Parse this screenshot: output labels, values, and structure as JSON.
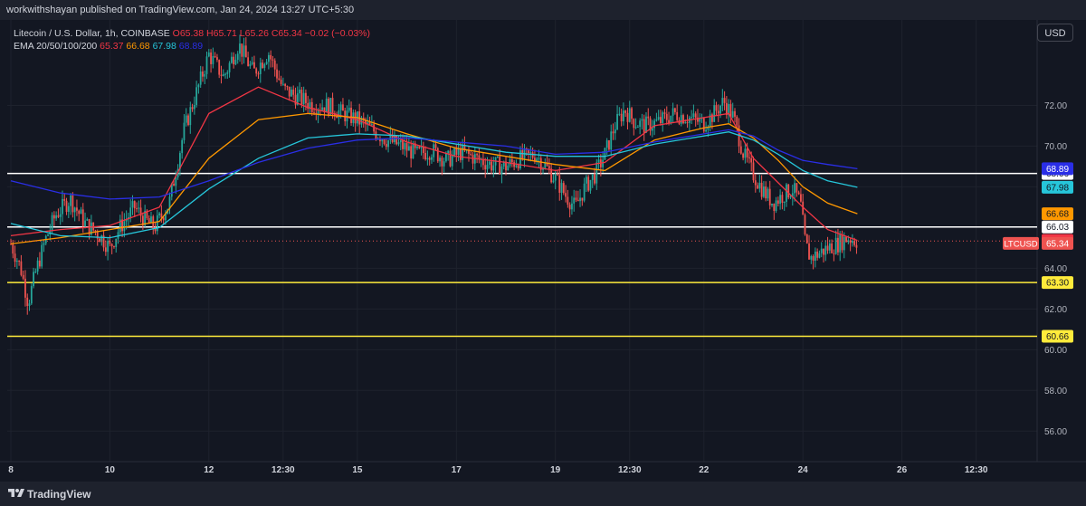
{
  "header": {
    "publisher_line": "workwithshayan published on TradingView.com, Jan 24, 2024 13:27 UTC+5:30"
  },
  "legend": {
    "symbol": "Litecoin / U.S. Dollar, 1h, COINBASE",
    "ohlc_text": "O65.38 H65.71 L65.26 C65.34 −0.02 (−0.03%)",
    "ema_label": "EMA 20/50/100/200",
    "ema20": "65.37",
    "ema50": "66.68",
    "ema100": "67.98",
    "ema200": "68.89"
  },
  "currency_button": "USD",
  "footer": {
    "brand": "TradingView"
  },
  "colors": {
    "background": "#131722",
    "up": "#26a69a",
    "down": "#ef5350",
    "ema20": "#f23645",
    "ema50": "#ff9800",
    "ema100": "#26c6da",
    "ema200": "#2a2ee6",
    "support_lines": "#ffeb3b",
    "resistance_lines": "#ffffff"
  },
  "chart_data": {
    "type": "candlestick",
    "symbol": "LTCUSD",
    "interval": "1h",
    "y_range": [
      54.5,
      76.2
    ],
    "y_ticks": [
      "56.00",
      "58.00",
      "60.00",
      "62.00",
      "64.00",
      "66.00",
      "68.00",
      "70.00",
      "72.00"
    ],
    "x_ticks": [
      {
        "label": "8",
        "t": 0
      },
      {
        "label": "10",
        "t": 2
      },
      {
        "label": "12",
        "t": 4
      },
      {
        "label": "12:30",
        "t": 5.5
      },
      {
        "label": "15",
        "t": 7
      },
      {
        "label": "17",
        "t": 9
      },
      {
        "label": "19",
        "t": 11
      },
      {
        "label": "12:30",
        "t": 12.5
      },
      {
        "label": "22",
        "t": 14
      },
      {
        "label": "24",
        "t": 16
      },
      {
        "label": "26",
        "t": 18
      },
      {
        "label": "12:30",
        "t": 19.5
      }
    ],
    "price_path": [
      [
        0,
        65.2
      ],
      [
        0.2,
        64.0
      ],
      [
        0.35,
        62.3
      ],
      [
        0.5,
        63.8
      ],
      [
        0.7,
        65.4
      ],
      [
        0.9,
        66.6
      ],
      [
        1.2,
        67.4
      ],
      [
        1.5,
        66.2
      ],
      [
        1.8,
        65.6
      ],
      [
        2.0,
        65.0
      ],
      [
        2.2,
        66.0
      ],
      [
        2.5,
        67.0
      ],
      [
        2.7,
        66.4
      ],
      [
        2.9,
        66.0
      ],
      [
        3.2,
        67.2
      ],
      [
        3.5,
        70.8
      ],
      [
        3.8,
        73.0
      ],
      [
        4.0,
        74.5
      ],
      [
        4.3,
        73.4
      ],
      [
        4.6,
        75.0
      ],
      [
        4.9,
        73.6
      ],
      [
        5.2,
        74.6
      ],
      [
        5.5,
        72.8
      ],
      [
        5.8,
        72.4
      ],
      [
        6.1,
        72.0
      ],
      [
        6.4,
        72.0
      ],
      [
        6.7,
        71.6
      ],
      [
        7.0,
        71.3
      ],
      [
        7.3,
        70.8
      ],
      [
        7.6,
        70.3
      ],
      [
        7.9,
        70.0
      ],
      [
        8.2,
        69.6
      ],
      [
        8.5,
        69.8
      ],
      [
        8.8,
        69.3
      ],
      [
        9.1,
        69.7
      ],
      [
        9.4,
        69.4
      ],
      [
        9.7,
        69.1
      ],
      [
        10.0,
        69.0
      ],
      [
        10.3,
        69.4
      ],
      [
        10.6,
        69.6
      ],
      [
        10.8,
        69.0
      ],
      [
        11.0,
        68.4
      ],
      [
        11.2,
        67.6
      ],
      [
        11.4,
        67.0
      ],
      [
        11.6,
        68.0
      ],
      [
        11.8,
        68.6
      ],
      [
        12.0,
        69.6
      ],
      [
        12.2,
        71.0
      ],
      [
        12.4,
        71.8
      ],
      [
        12.6,
        71.2
      ],
      [
        12.8,
        71.0
      ],
      [
        13.1,
        71.2
      ],
      [
        13.4,
        71.6
      ],
      [
        13.7,
        71.4
      ],
      [
        14.0,
        71.1
      ],
      [
        14.2,
        71.6
      ],
      [
        14.4,
        72.2
      ],
      [
        14.6,
        71.4
      ],
      [
        14.8,
        69.6
      ],
      [
        15.0,
        68.6
      ],
      [
        15.2,
        67.8
      ],
      [
        15.4,
        67.2
      ],
      [
        15.6,
        67.6
      ],
      [
        15.8,
        67.9
      ],
      [
        15.95,
        67.2
      ],
      [
        16.05,
        65.2
      ],
      [
        16.15,
        64.5
      ],
      [
        16.3,
        64.7
      ],
      [
        16.5,
        65.0
      ],
      [
        16.7,
        65.2
      ],
      [
        16.9,
        65.5
      ],
      [
        17.1,
        65.34
      ]
    ],
    "ema_series": [
      {
        "name": "EMA 20",
        "points": [
          [
            0,
            65.6
          ],
          [
            1,
            65.9
          ],
          [
            2,
            66.1
          ],
          [
            3,
            67.0
          ],
          [
            4,
            71.6
          ],
          [
            5,
            72.9
          ],
          [
            6,
            71.9
          ],
          [
            7,
            71.3
          ],
          [
            8,
            70.2
          ],
          [
            9,
            69.5
          ],
          [
            10,
            69.2
          ],
          [
            11,
            68.8
          ],
          [
            12,
            69.2
          ],
          [
            13,
            71.0
          ],
          [
            14,
            71.4
          ],
          [
            14.5,
            71.6
          ],
          [
            15,
            69.4
          ],
          [
            15.5,
            68.2
          ],
          [
            16,
            67.0
          ],
          [
            16.5,
            65.9
          ],
          [
            17.1,
            65.37
          ]
        ]
      },
      {
        "name": "EMA 50",
        "points": [
          [
            0,
            65.2
          ],
          [
            1,
            65.5
          ],
          [
            2,
            65.9
          ],
          [
            3,
            66.3
          ],
          [
            4,
            69.4
          ],
          [
            5,
            71.3
          ],
          [
            6,
            71.6
          ],
          [
            7,
            71.4
          ],
          [
            8,
            70.6
          ],
          [
            9,
            69.9
          ],
          [
            10,
            69.5
          ],
          [
            11,
            69.1
          ],
          [
            12,
            68.8
          ],
          [
            13,
            70.3
          ],
          [
            14,
            70.9
          ],
          [
            14.5,
            71.1
          ],
          [
            15,
            70.4
          ],
          [
            15.5,
            69.3
          ],
          [
            16,
            68.0
          ],
          [
            16.5,
            67.2
          ],
          [
            17.1,
            66.68
          ]
        ]
      },
      {
        "name": "EMA 100",
        "points": [
          [
            0,
            66.2
          ],
          [
            1,
            65.6
          ],
          [
            2,
            65.5
          ],
          [
            3,
            66.0
          ],
          [
            4,
            67.9
          ],
          [
            5,
            69.4
          ],
          [
            6,
            70.4
          ],
          [
            7,
            70.6
          ],
          [
            8,
            70.5
          ],
          [
            9,
            70.1
          ],
          [
            10,
            69.7
          ],
          [
            11,
            69.5
          ],
          [
            12,
            69.5
          ],
          [
            13,
            70.1
          ],
          [
            14,
            70.5
          ],
          [
            14.5,
            70.7
          ],
          [
            15,
            70.3
          ],
          [
            15.5,
            69.6
          ],
          [
            16,
            68.8
          ],
          [
            16.5,
            68.3
          ],
          [
            17.1,
            67.98
          ]
        ]
      },
      {
        "name": "EMA 200",
        "points": [
          [
            0,
            68.3
          ],
          [
            1,
            67.7
          ],
          [
            2,
            67.4
          ],
          [
            3,
            67.5
          ],
          [
            4,
            68.3
          ],
          [
            5,
            69.2
          ],
          [
            6,
            69.9
          ],
          [
            7,
            70.3
          ],
          [
            8,
            70.4
          ],
          [
            9,
            70.2
          ],
          [
            10,
            70.0
          ],
          [
            11,
            69.6
          ],
          [
            12,
            69.7
          ],
          [
            13,
            70.2
          ],
          [
            14,
            70.6
          ],
          [
            14.5,
            70.8
          ],
          [
            15,
            70.5
          ],
          [
            15.5,
            69.8
          ],
          [
            16,
            69.3
          ],
          [
            16.5,
            69.1
          ],
          [
            17.1,
            68.89
          ]
        ]
      }
    ],
    "horizontal_lines": [
      {
        "value": 68.66,
        "label": "68.66",
        "kind": "resistance"
      },
      {
        "value": 66.03,
        "label": "66.03",
        "kind": "resistance"
      },
      {
        "value": 63.3,
        "label": "63.30",
        "kind": "support"
      },
      {
        "value": 60.66,
        "label": "60.66",
        "kind": "support"
      }
    ],
    "price_labels": [
      {
        "value": 68.89,
        "text": "68.89",
        "series": "EMA 200"
      },
      {
        "value": 67.98,
        "text": "67.98",
        "series": "EMA 100"
      },
      {
        "value": 66.68,
        "text": "66.68",
        "series": "EMA 50"
      },
      {
        "value": 65.37,
        "text": "65.37",
        "series": "EMA 20"
      },
      {
        "value": 65.34,
        "text": "65.34",
        "series": "last"
      }
    ],
    "last_price_tag": "LTCUSD",
    "last_price": 65.34
  }
}
